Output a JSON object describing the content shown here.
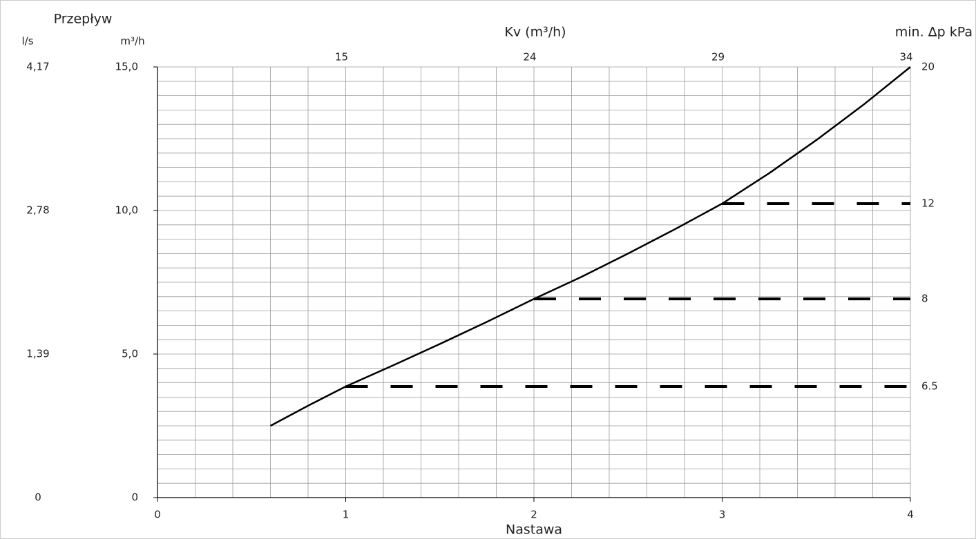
{
  "chart_data": {
    "type": "line",
    "title": "Kv (m³/h)",
    "y_title": "Przepływ",
    "y_unit_left": "l/s",
    "y_unit": "m³/h",
    "y2_title": "min. Δp kPa",
    "x_title": "Nastawa",
    "x": [
      0.6,
      0.8,
      1,
      1.25,
      1.5,
      1.75,
      2,
      2.25,
      2.5,
      2.75,
      3,
      3.25,
      3.5,
      3.75,
      4
    ],
    "values": [
      2.5,
      3.2,
      3.87,
      4.6,
      5.35,
      6.12,
      6.92,
      7.68,
      8.5,
      9.35,
      10.24,
      11.3,
      12.45,
      13.68,
      15
    ],
    "color": "#000000",
    "xlim": [
      0,
      4
    ],
    "ylim": [
      0,
      15
    ],
    "xticks": [
      0,
      1,
      2,
      3,
      4
    ],
    "yticks": [
      {
        "value": 15,
        "label": "15,0"
      },
      {
        "value": 10,
        "label": "10,0"
      },
      {
        "value": 5,
        "label": "5,0"
      },
      0
    ],
    "yticks_ls": [
      {
        "value": 15,
        "label": "4,17"
      },
      {
        "value": 10,
        "label": "2,78"
      },
      {
        "value": 5,
        "label": "1,39"
      },
      0
    ],
    "kv_ticks": [
      {
        "x": 1,
        "kv": 15
      },
      {
        "x": 2,
        "kv": 24
      },
      {
        "x": 3,
        "kv": 29
      },
      {
        "x": 4,
        "kv": 34
      }
    ],
    "dp_levels": [
      {
        "dp": 6.5,
        "flow": 3.87,
        "from": 1,
        "dashed": true
      },
      {
        "dp": 8,
        "flow": 6.92,
        "from": 2,
        "dashed": true
      },
      {
        "dp": 12,
        "flow": 10.24,
        "from": 3,
        "dashed": true
      },
      {
        "dp": 20,
        "flow": 15,
        "from": 4,
        "dashed": false
      }
    ],
    "xgrid": [
      0.2,
      0.4,
      0.6,
      0.8,
      1,
      1.2,
      1.4,
      1.6,
      1.8,
      2,
      2.2,
      2.4,
      2.6,
      2.8,
      3,
      3.2,
      3.4,
      3.6,
      3.8,
      4
    ],
    "ygrid": [
      0.5,
      1,
      1.5,
      2,
      2.5,
      3,
      3.5,
      4,
      4.5,
      5,
      5.5,
      6,
      6.5,
      7,
      7.5,
      8,
      8.5,
      9,
      9.5,
      10,
      10.5,
      11,
      11.5,
      12,
      12.5,
      13,
      13.5,
      14,
      14.5,
      15
    ],
    "grid": true
  }
}
